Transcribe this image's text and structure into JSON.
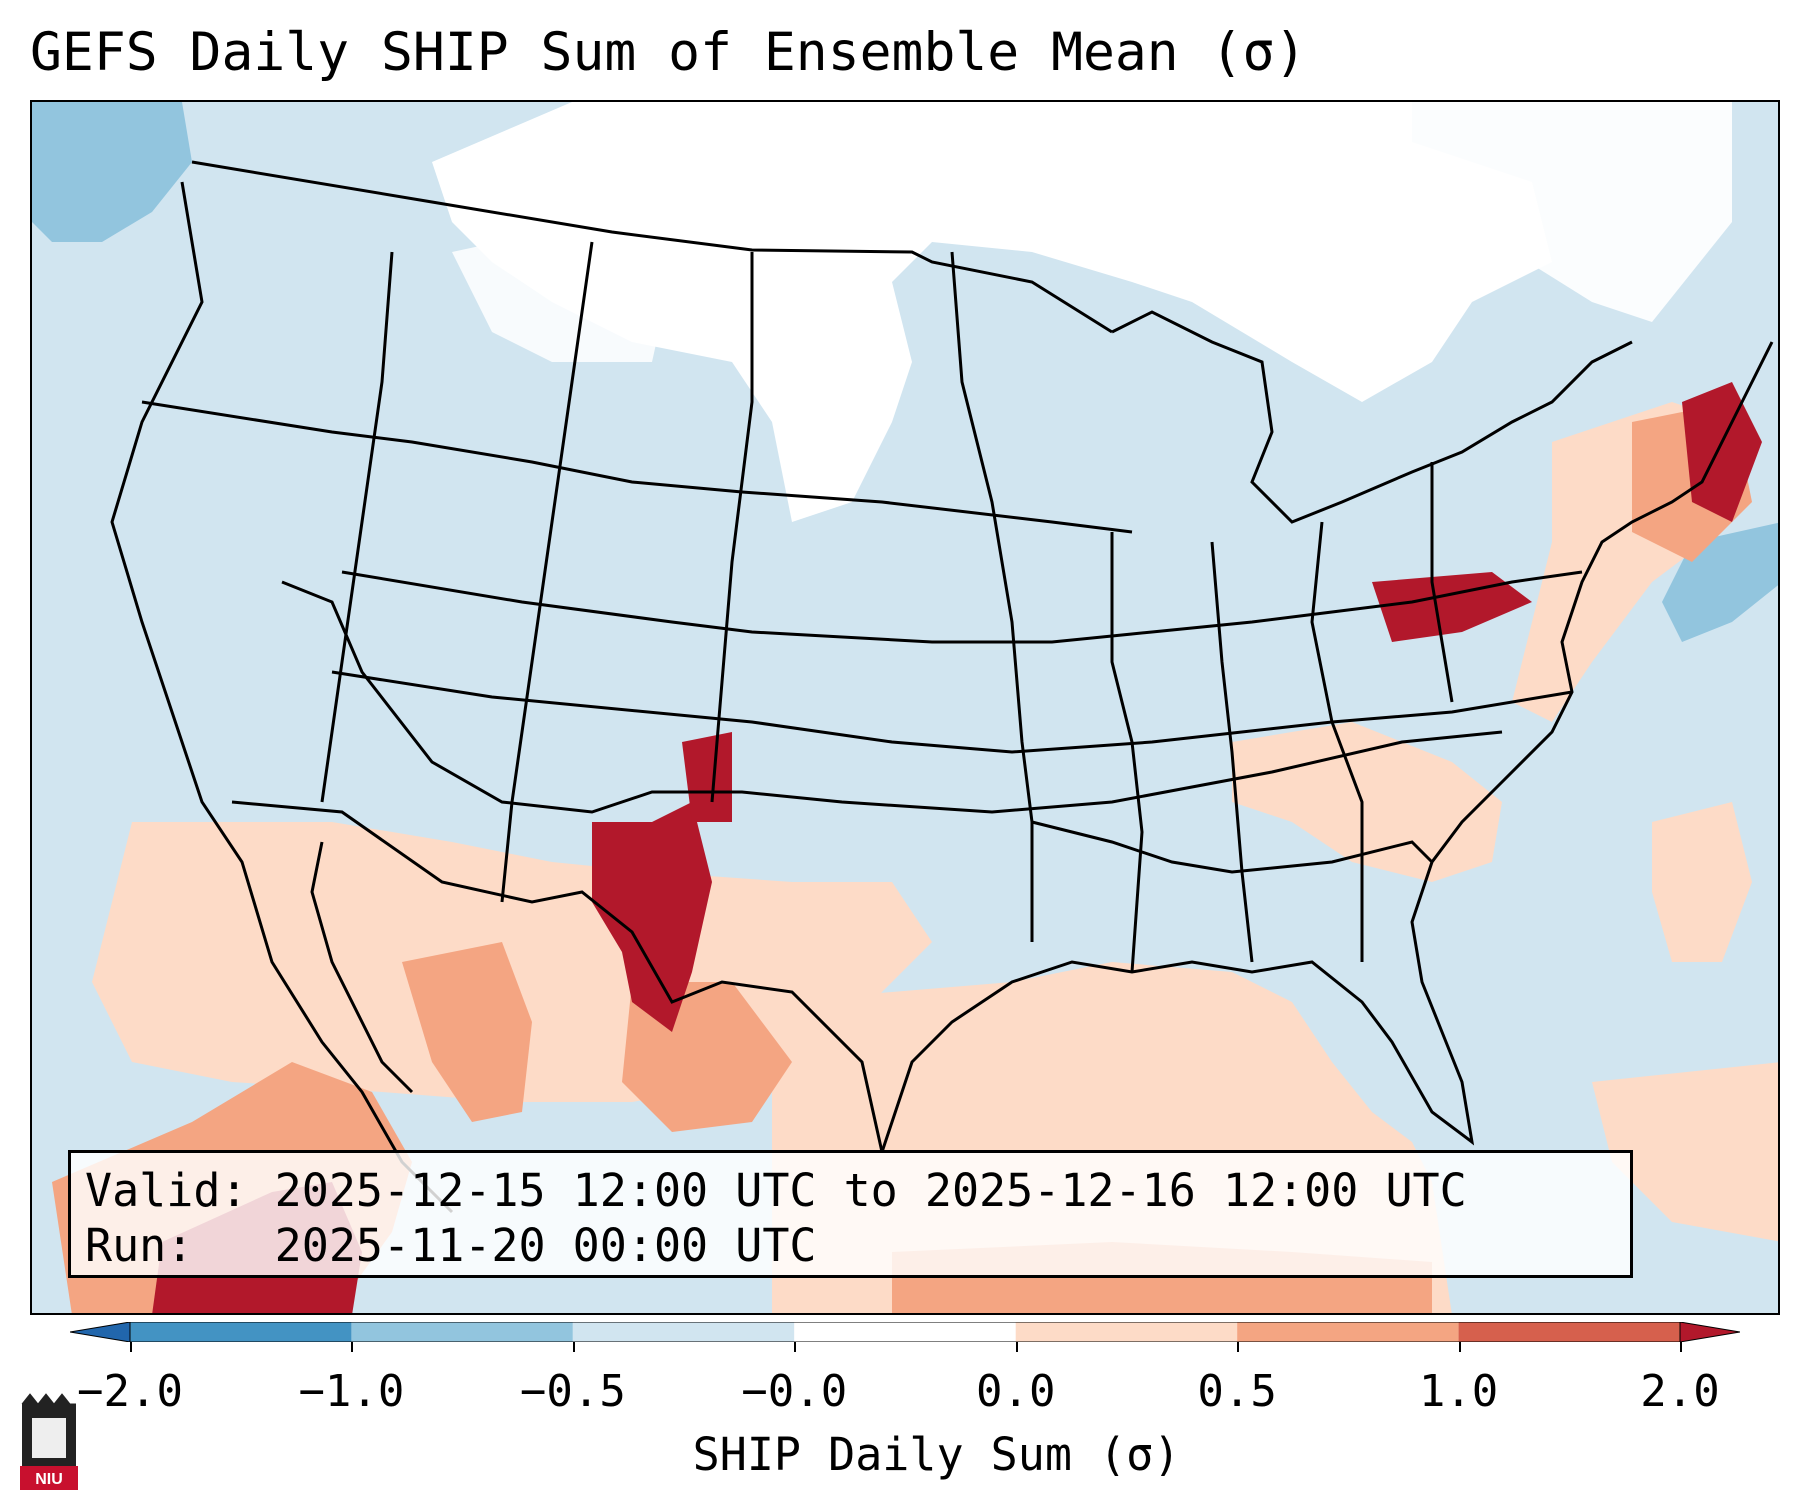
{
  "title": "GEFS Daily SHIP Sum of Ensemble Mean (σ)",
  "info": {
    "valid_label": "Valid:",
    "valid_value": "2025-12-15 12:00 UTC to 2025-12-16 12:00 UTC",
    "run_label": "Run:",
    "run_value": "2025-11-20 00:00 UTC"
  },
  "colorbar": {
    "label": "SHIP Daily Sum (σ)",
    "ticks": [
      "−2.0",
      "−1.0",
      "−0.5",
      "−0.0",
      "0.0",
      "0.5",
      "1.0",
      "2.0"
    ],
    "colors": [
      "#2166ac",
      "#4393c3",
      "#92c5de",
      "#d1e5f0",
      "#ffffff",
      "#fddbc7",
      "#f4a582",
      "#d6604d",
      "#b2182b"
    ],
    "extend": "both"
  },
  "logo": {
    "text": "NIU",
    "color": "#c8102e"
  },
  "map": {
    "region": "CONUS",
    "background_level": "#d1e5f0",
    "strong_positive_color": "#b2182b",
    "positive_color": "#d6604d",
    "weak_positive_color": "#f4a582",
    "slight_positive_color": "#fddbc7",
    "neutral_color": "#ffffff",
    "slight_negative_color": "#d1e5f0",
    "weak_negative_color": "#92c5de"
  }
}
